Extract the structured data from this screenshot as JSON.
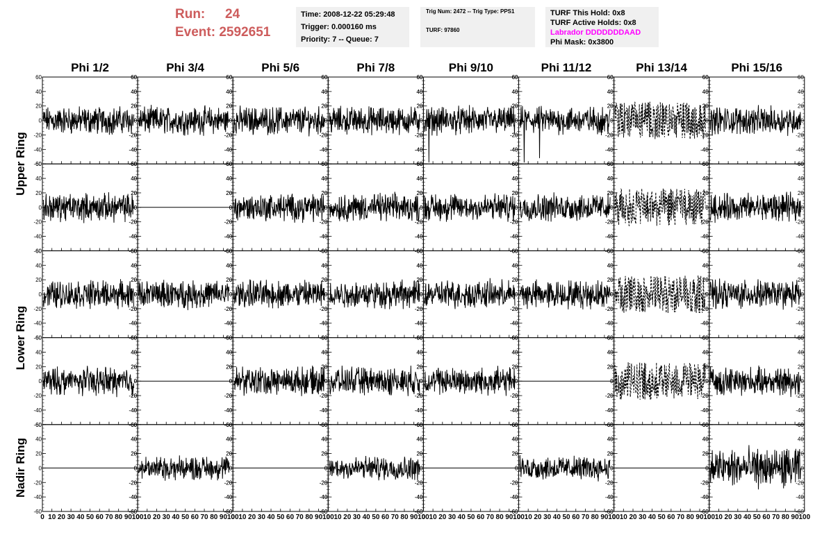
{
  "header": {
    "run_label": "Run:",
    "run_value": "24",
    "event_label": "Event:",
    "event_value": "2592651"
  },
  "info_panel_1": {
    "time": "Time: 2008-12-22 05:29:48",
    "trigger": "Trigger: 0.000160 ms",
    "priority": "Priority: 7 -- Queue: 7"
  },
  "info_panel_2": {
    "trig": "Trig Num: 2472 -- Trig Type: PPS1",
    "turf": "TURF: 97860"
  },
  "info_panel_3": {
    "this_hold": "TURF This Hold: 0x8",
    "active_holds": "TURF Active Holds: 0x8",
    "labrador": "Labrador DDDDDDDAAD",
    "phi_mask": "Phi Mask: 0x3800"
  },
  "chart_data": {
    "type": "line",
    "columns": [
      "Phi 1/2",
      "Phi 3/4",
      "Phi 5/6",
      "Phi 7/8",
      "Phi 9/10",
      "Phi 11/12",
      "Phi 13/14",
      "Phi 15/16"
    ],
    "row_groups": [
      "Upper Ring",
      "Lower Ring",
      "Nadir Ring"
    ],
    "rows": 5,
    "xlim": [
      0,
      100
    ],
    "ylim": [
      -60,
      60
    ],
    "x_ticks": [
      "0",
      "10",
      "20",
      "30",
      "40",
      "50",
      "60",
      "70",
      "80",
      "90",
      "100"
    ],
    "y_ticks": [
      "-60",
      "-40",
      "-20",
      "0",
      "20",
      "40",
      "60"
    ],
    "panels": [
      [
        "noise",
        "noise",
        "noise",
        "noise",
        "noise-spike",
        "noise-spike",
        "dashed",
        "noise"
      ],
      [
        "noise",
        "flat",
        "noise",
        "noise",
        "noise",
        "noise",
        "dashed",
        "noise"
      ],
      [
        "noise",
        "noise",
        "noise",
        "noise",
        "noise",
        "noise",
        "dashed",
        "noise"
      ],
      [
        "noise",
        "flat",
        "noise",
        "noise",
        "noise",
        "flat",
        "dashed",
        "noise"
      ],
      [
        "flat",
        "noise",
        "flat",
        "noise",
        "flat",
        "noise",
        "flat",
        "noise"
      ]
    ]
  }
}
